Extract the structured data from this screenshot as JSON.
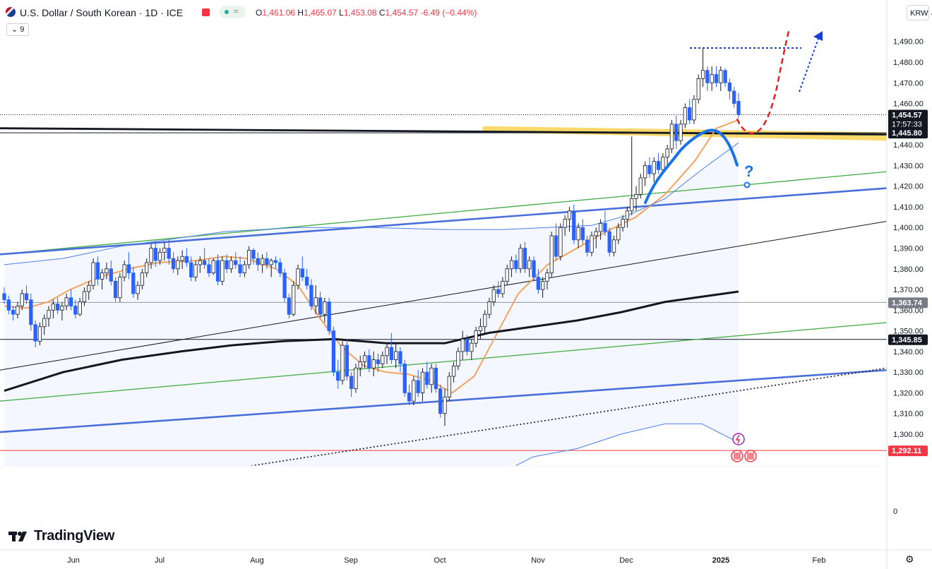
{
  "header": {
    "symbol_title": "U.S. Dollar / South Korean · 1D · ICE",
    "pill_icon": "≈",
    "ohlc": {
      "open_label": "O",
      "open": "1,461.06",
      "high_label": "H",
      "high": "1,465.07",
      "low_label": "L",
      "low": "1,453.08",
      "close_label": "C",
      "close": "1,454.57",
      "change": "-6.49 (−0.44%)"
    },
    "indicator_count": "9",
    "currency": "KRW",
    "currency_icon": "chevron-down-icon"
  },
  "branding": {
    "logo_text": "TradingView"
  },
  "colors": {
    "up": "#ffffff",
    "down": "#2962ff",
    "accent": "#2962ff",
    "label_red": "#f23645",
    "highlight": "#f5c518"
  },
  "chart_data": {
    "type": "candlestick",
    "symbol": "U.S. Dollar / South Korean",
    "interval": "1D",
    "ylim": [
      1270,
      1500
    ],
    "y_ticks": [
      "1,490.00",
      "1,480.00",
      "1,470.00",
      "1,460.00",
      "1,450.00",
      "1,440.00",
      "1,430.00",
      "1,420.00",
      "1,410.00",
      "1,400.00",
      "1,390.00",
      "1,380.00",
      "1,370.00",
      "1,360.00",
      "1,350.00",
      "1,340.00",
      "1,330.00",
      "1,320.00",
      "1,310.00",
      "1,300.00"
    ],
    "volume_axis_label": "0",
    "x_labels": [
      "Jun",
      "Jul",
      "Aug",
      "Sep",
      "Oct",
      "Nov",
      "Dec",
      "2025",
      "Feb"
    ],
    "price_labels": [
      {
        "text": "1,454.57",
        "sub": "17:57:33",
        "value": 1454.57,
        "style": "dark"
      },
      {
        "text": "1,445.80",
        "value": 1445.8,
        "style": "dark"
      },
      {
        "text": "1,363.74",
        "value": 1363.74,
        "style": "grey"
      },
      {
        "text": "1,345.85",
        "value": 1345.85,
        "style": "dark"
      },
      {
        "text": "1,292.11",
        "value": 1292.11,
        "style": "red"
      }
    ],
    "horizontal_lines": [
      {
        "value": 1454.57,
        "style": "dotted"
      },
      {
        "value": 1445.8,
        "style": "solid"
      },
      {
        "value": 1363.74,
        "style": "solid-grey"
      },
      {
        "value": 1345.85,
        "style": "solid"
      },
      {
        "value": 1292.11,
        "style": "solid-red"
      }
    ],
    "annotation_text": "?",
    "candles": [
      [
        1368,
        1371,
        1363,
        1365
      ],
      [
        1365,
        1367,
        1358,
        1360
      ],
      [
        1360,
        1362,
        1355,
        1358
      ],
      [
        1358,
        1364,
        1356,
        1362
      ],
      [
        1362,
        1370,
        1360,
        1368
      ],
      [
        1368,
        1372,
        1363,
        1365
      ],
      [
        1365,
        1368,
        1350,
        1353
      ],
      [
        1353,
        1355,
        1342,
        1345
      ],
      [
        1345,
        1354,
        1343,
        1352
      ],
      [
        1352,
        1358,
        1348,
        1356
      ],
      [
        1356,
        1362,
        1352,
        1360
      ],
      [
        1360,
        1365,
        1356,
        1363
      ],
      [
        1363,
        1366,
        1358,
        1360
      ],
      [
        1360,
        1364,
        1355,
        1362
      ],
      [
        1362,
        1368,
        1360,
        1366
      ],
      [
        1366,
        1370,
        1360,
        1362
      ],
      [
        1362,
        1365,
        1356,
        1358
      ],
      [
        1358,
        1366,
        1357,
        1364
      ],
      [
        1364,
        1371,
        1362,
        1369
      ],
      [
        1369,
        1374,
        1365,
        1372
      ],
      [
        1372,
        1385,
        1370,
        1383
      ],
      [
        1383,
        1386,
        1372,
        1375
      ],
      [
        1375,
        1380,
        1370,
        1378
      ],
      [
        1378,
        1383,
        1375,
        1380
      ],
      [
        1380,
        1384,
        1372,
        1374
      ],
      [
        1374,
        1376,
        1364,
        1366
      ],
      [
        1366,
        1378,
        1364,
        1376
      ],
      [
        1376,
        1384,
        1374,
        1382
      ],
      [
        1382,
        1388,
        1375,
        1378
      ],
      [
        1378,
        1381,
        1366,
        1368
      ],
      [
        1368,
        1374,
        1365,
        1372
      ],
      [
        1372,
        1380,
        1370,
        1378
      ],
      [
        1378,
        1385,
        1376,
        1383
      ],
      [
        1383,
        1392,
        1380,
        1390
      ],
      [
        1390,
        1393,
        1381,
        1384
      ],
      [
        1384,
        1390,
        1382,
        1388
      ],
      [
        1388,
        1393,
        1384,
        1390
      ],
      [
        1390,
        1394,
        1382,
        1385
      ],
      [
        1385,
        1388,
        1378,
        1380
      ],
      [
        1380,
        1386,
        1377,
        1384
      ],
      [
        1384,
        1389,
        1380,
        1386
      ],
      [
        1386,
        1390,
        1381,
        1383
      ],
      [
        1383,
        1386,
        1374,
        1376
      ],
      [
        1376,
        1384,
        1374,
        1382
      ],
      [
        1382,
        1386,
        1378,
        1384
      ],
      [
        1384,
        1390,
        1380,
        1382
      ],
      [
        1382,
        1385,
        1376,
        1378
      ],
      [
        1378,
        1385,
        1377,
        1384
      ],
      [
        1384,
        1387,
        1372,
        1374
      ],
      [
        1374,
        1386,
        1372,
        1384
      ],
      [
        1384,
        1387,
        1378,
        1380
      ],
      [
        1380,
        1386,
        1378,
        1384
      ],
      [
        1384,
        1388,
        1380,
        1382
      ],
      [
        1382,
        1386,
        1376,
        1378
      ],
      [
        1378,
        1384,
        1376,
        1382
      ],
      [
        1382,
        1391,
        1380,
        1389
      ],
      [
        1389,
        1390,
        1382,
        1385
      ],
      [
        1385,
        1388,
        1379,
        1382
      ],
      [
        1382,
        1387,
        1378,
        1385
      ],
      [
        1385,
        1388,
        1380,
        1382
      ],
      [
        1382,
        1385,
        1376,
        1384
      ],
      [
        1384,
        1386,
        1380,
        1383
      ],
      [
        1383,
        1385,
        1376,
        1378
      ],
      [
        1378,
        1380,
        1364,
        1366
      ],
      [
        1366,
        1368,
        1356,
        1358
      ],
      [
        1358,
        1374,
        1357,
        1372
      ],
      [
        1372,
        1382,
        1370,
        1380
      ],
      [
        1380,
        1386,
        1374,
        1376
      ],
      [
        1376,
        1380,
        1370,
        1372
      ],
      [
        1372,
        1375,
        1360,
        1362
      ],
      [
        1362,
        1372,
        1358,
        1366
      ],
      [
        1366,
        1369,
        1356,
        1358
      ],
      [
        1358,
        1366,
        1354,
        1364
      ],
      [
        1364,
        1366,
        1348,
        1350
      ],
      [
        1350,
        1352,
        1328,
        1330
      ],
      [
        1330,
        1336,
        1322,
        1326
      ],
      [
        1326,
        1345,
        1324,
        1343
      ],
      [
        1343,
        1346,
        1326,
        1328
      ],
      [
        1328,
        1330,
        1318,
        1322
      ],
      [
        1322,
        1334,
        1320,
        1332
      ],
      [
        1332,
        1338,
        1328,
        1335
      ],
      [
        1335,
        1340,
        1332,
        1338
      ],
      [
        1338,
        1341,
        1330,
        1332
      ],
      [
        1332,
        1340,
        1328,
        1336
      ],
      [
        1336,
        1339,
        1330,
        1334
      ],
      [
        1334,
        1340,
        1332,
        1338
      ],
      [
        1338,
        1344,
        1334,
        1342
      ],
      [
        1342,
        1349,
        1334,
        1336
      ],
      [
        1336,
        1344,
        1332,
        1340
      ],
      [
        1340,
        1342,
        1330,
        1334
      ],
      [
        1334,
        1336,
        1318,
        1320
      ],
      [
        1320,
        1324,
        1314,
        1316
      ],
      [
        1316,
        1328,
        1314,
        1326
      ],
      [
        1326,
        1331,
        1318,
        1320
      ],
      [
        1320,
        1332,
        1316,
        1330
      ],
      [
        1330,
        1335,
        1322,
        1324
      ],
      [
        1324,
        1334,
        1320,
        1332
      ],
      [
        1332,
        1334,
        1320,
        1322
      ],
      [
        1322,
        1324,
        1308,
        1310
      ],
      [
        1310,
        1322,
        1304,
        1318
      ],
      [
        1318,
        1330,
        1316,
        1328
      ],
      [
        1328,
        1335,
        1325,
        1333
      ],
      [
        1333,
        1342,
        1331,
        1340
      ],
      [
        1340,
        1350,
        1336,
        1346
      ],
      [
        1346,
        1348,
        1338,
        1340
      ],
      [
        1340,
        1346,
        1336,
        1344
      ],
      [
        1344,
        1352,
        1342,
        1350
      ],
      [
        1350,
        1356,
        1346,
        1352
      ],
      [
        1352,
        1360,
        1348,
        1358
      ],
      [
        1358,
        1366,
        1356,
        1364
      ],
      [
        1364,
        1372,
        1362,
        1370
      ],
      [
        1370,
        1374,
        1366,
        1368
      ],
      [
        1368,
        1376,
        1366,
        1374
      ],
      [
        1374,
        1382,
        1372,
        1380
      ],
      [
        1380,
        1386,
        1376,
        1384
      ],
      [
        1384,
        1387,
        1378,
        1380
      ],
      [
        1380,
        1392,
        1378,
        1390
      ],
      [
        1390,
        1393,
        1378,
        1380
      ],
      [
        1380,
        1386,
        1376,
        1384
      ],
      [
        1384,
        1386,
        1374,
        1376
      ],
      [
        1376,
        1380,
        1368,
        1370
      ],
      [
        1370,
        1376,
        1366,
        1374
      ],
      [
        1374,
        1380,
        1370,
        1378
      ],
      [
        1378,
        1398,
        1376,
        1396
      ],
      [
        1396,
        1402,
        1384,
        1386
      ],
      [
        1386,
        1402,
        1384,
        1400
      ],
      [
        1400,
        1406,
        1396,
        1404
      ],
      [
        1404,
        1410,
        1398,
        1408
      ],
      [
        1408,
        1411,
        1392,
        1394
      ],
      [
        1394,
        1402,
        1390,
        1400
      ],
      [
        1400,
        1404,
        1392,
        1394
      ],
      [
        1394,
        1396,
        1386,
        1388
      ],
      [
        1388,
        1398,
        1386,
        1396
      ],
      [
        1396,
        1400,
        1390,
        1398
      ],
      [
        1398,
        1404,
        1394,
        1402
      ],
      [
        1402,
        1408,
        1396,
        1398
      ],
      [
        1398,
        1400,
        1386,
        1388
      ],
      [
        1388,
        1396,
        1386,
        1394
      ],
      [
        1394,
        1402,
        1392,
        1400
      ],
      [
        1400,
        1406,
        1398,
        1404
      ],
      [
        1404,
        1410,
        1400,
        1408
      ],
      [
        1408,
        1444,
        1406,
        1414
      ],
      [
        1414,
        1420,
        1408,
        1416
      ],
      [
        1416,
        1426,
        1414,
        1424
      ],
      [
        1424,
        1432,
        1420,
        1430
      ],
      [
        1430,
        1434,
        1424,
        1426
      ],
      [
        1426,
        1434,
        1422,
        1432
      ],
      [
        1432,
        1436,
        1426,
        1428
      ],
      [
        1428,
        1436,
        1426,
        1434
      ],
      [
        1434,
        1440,
        1430,
        1438
      ],
      [
        1438,
        1452,
        1436,
        1450
      ],
      [
        1450,
        1454,
        1438,
        1442
      ],
      [
        1442,
        1452,
        1440,
        1450
      ],
      [
        1450,
        1460,
        1448,
        1458
      ],
      [
        1458,
        1462,
        1450,
        1452
      ],
      [
        1452,
        1464,
        1450,
        1462
      ],
      [
        1462,
        1474,
        1460,
        1472
      ],
      [
        1472,
        1487,
        1468,
        1476
      ],
      [
        1476,
        1478,
        1466,
        1470
      ],
      [
        1470,
        1478,
        1466,
        1474
      ],
      [
        1474,
        1478,
        1468,
        1470
      ],
      [
        1470,
        1478,
        1466,
        1476
      ],
      [
        1476,
        1477,
        1468,
        1470
      ],
      [
        1470,
        1472,
        1462,
        1466
      ],
      [
        1466,
        1468,
        1458,
        1460
      ],
      [
        1461.06,
        1465.07,
        1453.08,
        1454.57
      ]
    ],
    "series": [
      {
        "name": "",
        "kind": "ma_fast",
        "color": "#f2a35e",
        "x": [
          0,
          0.03,
          0.06,
          0.09,
          0.13,
          0.17,
          0.21,
          0.26,
          0.3,
          0.33,
          0.37,
          0.4,
          0.43,
          0.46,
          0.49,
          0.52,
          0.55,
          0.58,
          0.61,
          0.64,
          0.67,
          0.7,
          0.74,
          0.78,
          0.82,
          0.86,
          0.9,
          0.94,
          0.97,
          1
        ],
        "y": [
          1362,
          1361,
          1364,
          1370,
          1376,
          1380,
          1383,
          1384,
          1386,
          1385,
          1380,
          1372,
          1356,
          1342,
          1333,
          1330,
          1329,
          1326,
          1320,
          1328,
          1348,
          1368,
          1382,
          1390,
          1398,
          1405,
          1416,
          1432,
          1448,
          1452
        ]
      },
      {
        "name": "",
        "kind": "ma_200",
        "color": "#131722",
        "x": [
          0,
          0.08,
          0.16,
          0.24,
          0.31,
          0.38,
          0.45,
          0.52,
          0.6,
          0.66,
          0.72,
          0.78,
          0.84,
          0.9,
          1
        ],
        "y": [
          1321,
          1330,
          1336,
          1340,
          1343,
          1345,
          1346,
          1344,
          1344,
          1349,
          1352,
          1355,
          1359,
          1364,
          1369
        ]
      },
      {
        "name": "",
        "kind": "bb_upper",
        "color": "#4a7fe8",
        "x": [
          0,
          0.08,
          0.16,
          0.24,
          0.3,
          0.4,
          0.5,
          0.6,
          0.68,
          0.74,
          0.8,
          0.85,
          0.9,
          0.95,
          1
        ],
        "y": [
          1382,
          1385,
          1391,
          1395,
          1398,
          1400,
          1400,
          1399,
          1399,
          1400,
          1401,
          1406,
          1414,
          1428,
          1441
        ]
      },
      {
        "name": "",
        "kind": "bb_lower",
        "color": "#4a7fe8",
        "x": [
          0,
          0.08,
          0.16,
          0.24,
          0.3,
          0.4,
          0.5,
          0.6,
          0.66,
          0.72,
          0.78,
          0.84,
          0.9,
          0.95,
          1
        ],
        "y": [
          1276,
          1277,
          1276,
          1275,
          1274,
          1273,
          1274,
          1268,
          1278,
          1289,
          1293,
          1300,
          1305,
          1305,
          1296
        ]
      }
    ],
    "drawings": [
      {
        "kind": "channel_upper_green",
        "from": [
          0,
          1387
        ],
        "to": [
          1,
          1427
        ]
      },
      {
        "kind": "channel_upper_blue",
        "from": [
          0,
          1387
        ],
        "to": [
          1,
          1419
        ]
      },
      {
        "kind": "channel_lower_green",
        "from": [
          0,
          1316
        ],
        "to": [
          1,
          1354
        ]
      },
      {
        "kind": "channel_lower_blue",
        "from": [
          0,
          1301
        ],
        "to": [
          1,
          1331
        ]
      },
      {
        "kind": "mid_thin_black",
        "from": [
          0,
          1331
        ],
        "to": [
          1,
          1403
        ]
      },
      {
        "kind": "thick_black_resistance",
        "from": [
          0,
          1448
        ],
        "to": [
          1,
          1445
        ]
      },
      {
        "kind": "dotted_trend",
        "from": [
          0,
          1266
        ],
        "to": [
          1,
          1332
        ]
      }
    ]
  }
}
